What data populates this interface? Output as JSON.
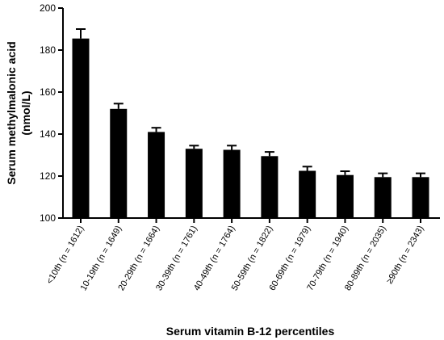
{
  "chart_data": {
    "type": "bar",
    "title": "",
    "xlabel": "Serum vitamin B-12 percentiles",
    "ylabel_line1": "Serum methylmalonic acid",
    "ylabel_line2": "(nmol/L)",
    "ylim": [
      100,
      200
    ],
    "yticks": [
      100,
      120,
      140,
      160,
      180,
      200
    ],
    "categories": [
      "<10th (n = 1612)",
      "10-19th (n = 1649)",
      "20-29th (n = 1664)",
      "30-39th (n = 1761)",
      "40-49th (n = 1764)",
      "50-59th (n = 1822)",
      "60-69th (n = 1979)",
      "70-79th (n = 1940)",
      "80-89th (n = 2035)",
      "≥90th (n = 2343)"
    ],
    "values": [
      185.5,
      152,
      141,
      133,
      132.5,
      129.5,
      122.5,
      120.5,
      119.5,
      119.5
    ],
    "error": [
      4.5,
      2.5,
      2,
      1.5,
      2,
      2,
      2,
      1.8,
      1.8,
      1.8
    ],
    "bar_color": "#000000",
    "grid": false
  }
}
